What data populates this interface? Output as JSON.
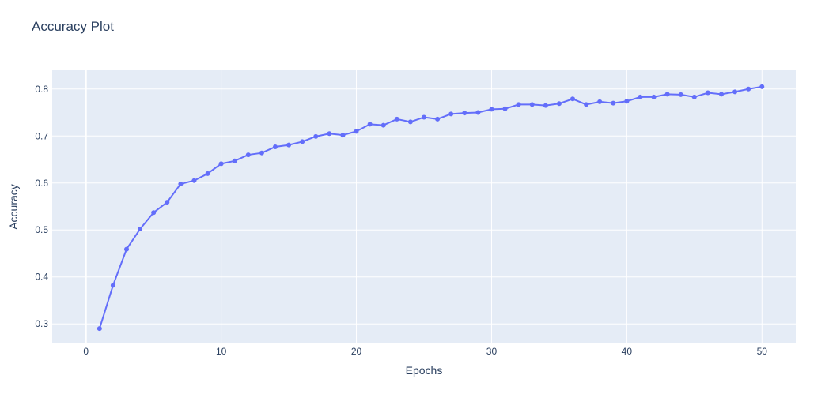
{
  "chart_data": {
    "type": "line",
    "title": "Accuracy Plot",
    "xlabel": "Epochs",
    "ylabel": "Accuracy",
    "xlim": [
      -2.5,
      52.5
    ],
    "ylim": [
      0.26,
      0.84
    ],
    "x_ticks": [
      0,
      10,
      20,
      30,
      40,
      50
    ],
    "y_ticks": [
      0.3,
      0.4,
      0.5,
      0.6,
      0.7,
      0.8
    ],
    "x_tick_labels": [
      "0",
      "10",
      "20",
      "30",
      "40",
      "50"
    ],
    "y_tick_labels": [
      "0.3",
      "0.4",
      "0.5",
      "0.6",
      "0.7",
      "0.8"
    ],
    "grid": true,
    "legend": "none",
    "line_color": "#636efa",
    "plot_bg": "#e5ecf6",
    "x": [
      1,
      2,
      3,
      4,
      5,
      6,
      7,
      8,
      9,
      10,
      11,
      12,
      13,
      14,
      15,
      16,
      17,
      18,
      19,
      20,
      21,
      22,
      23,
      24,
      25,
      26,
      27,
      28,
      29,
      30,
      31,
      32,
      33,
      34,
      35,
      36,
      37,
      38,
      39,
      40,
      41,
      42,
      43,
      44,
      45,
      46,
      47,
      48,
      49,
      50
    ],
    "y": [
      0.29,
      0.382,
      0.459,
      0.502,
      0.537,
      0.559,
      0.598,
      0.605,
      0.62,
      0.641,
      0.647,
      0.66,
      0.664,
      0.677,
      0.681,
      0.688,
      0.699,
      0.705,
      0.702,
      0.71,
      0.725,
      0.723,
      0.736,
      0.73,
      0.74,
      0.736,
      0.747,
      0.749,
      0.75,
      0.757,
      0.758,
      0.767,
      0.767,
      0.765,
      0.769,
      0.779,
      0.767,
      0.773,
      0.77,
      0.774,
      0.783,
      0.783,
      0.789,
      0.788,
      0.783,
      0.792,
      0.789,
      0.794,
      0.8,
      0.805
    ]
  }
}
